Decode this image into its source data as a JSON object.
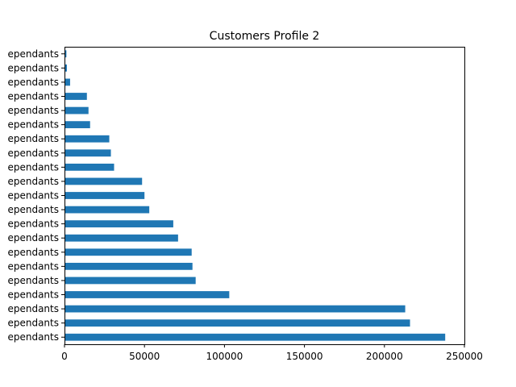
{
  "chart_data": {
    "type": "bar",
    "orientation": "horizontal",
    "title": "Customers Profile 2",
    "xlabel": "",
    "ylabel": "",
    "xlim": [
      0,
      250000
    ],
    "x_ticks": [
      0,
      50000,
      100000,
      150000,
      200000,
      250000
    ],
    "x_tick_labels": [
      "0",
      "50000",
      "100000",
      "150000",
      "200000",
      "250000"
    ],
    "grid": false,
    "legend": "none",
    "bar_color": "#1f77b4",
    "categories": [
      "ependants",
      "ependants",
      "ependants",
      "ependants",
      "ependants",
      "ependants",
      "ependants",
      "ependants",
      "ependants",
      "ependants",
      "ependants",
      "ependants",
      "ependants",
      "ependants",
      "ependants",
      "ependants",
      "ependants",
      "ependants",
      "ependants",
      "ependants",
      "ependants"
    ],
    "values": [
      238000,
      216000,
      213000,
      103000,
      82000,
      80000,
      79500,
      71000,
      68000,
      53000,
      50000,
      48500,
      31000,
      29000,
      28000,
      16000,
      15000,
      14000,
      3500,
      1500,
      1200
    ]
  }
}
